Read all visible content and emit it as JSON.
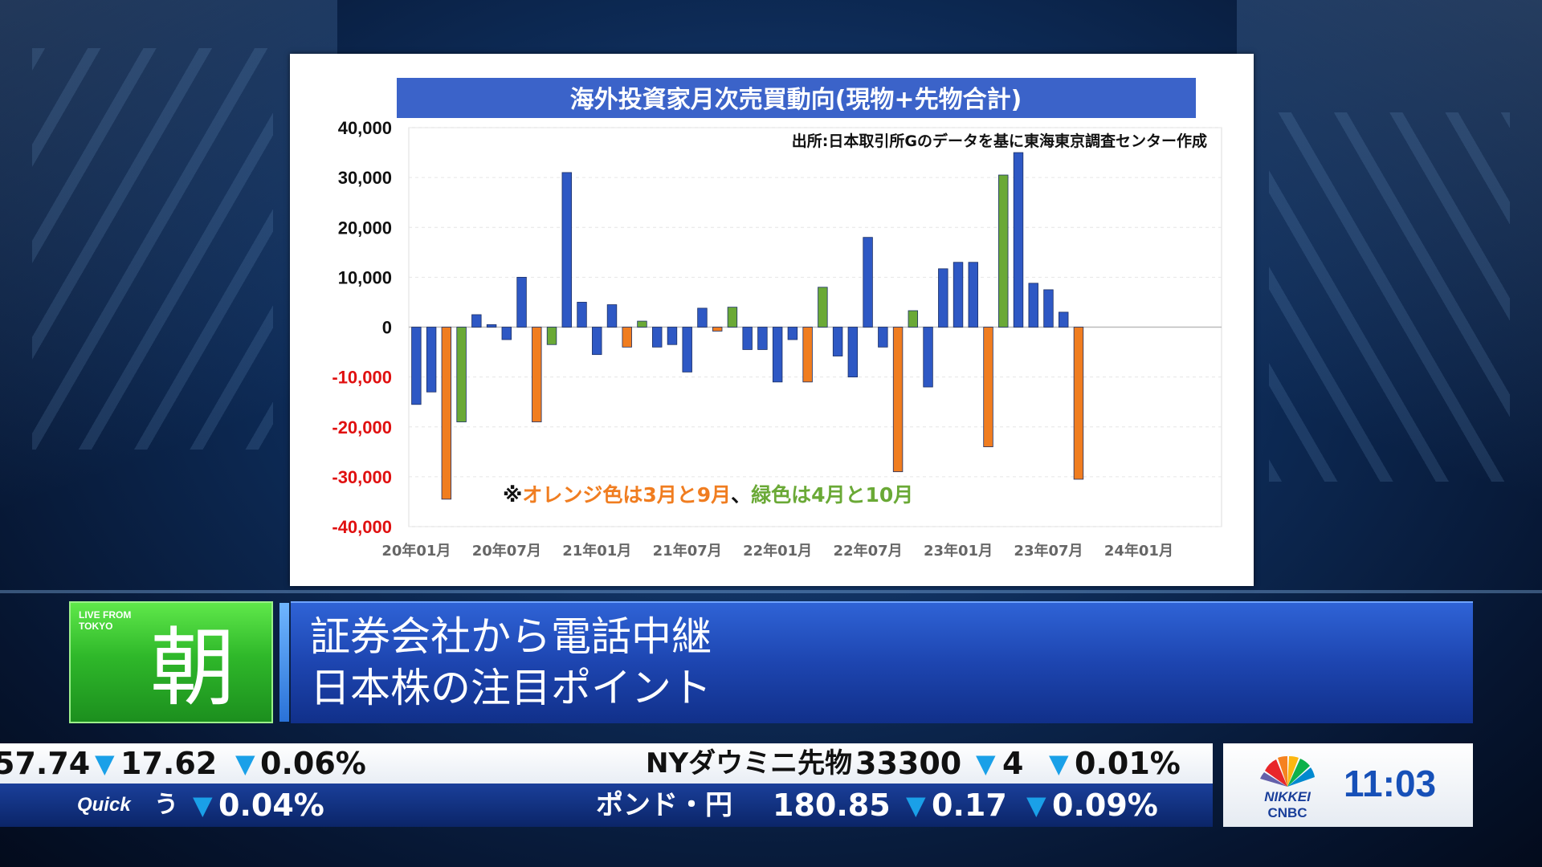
{
  "chart_data": {
    "type": "bar",
    "title": "海外投資家月次売買動向(現物+先物合計)",
    "source_note": "出所:日本取引所Gのデータを基に東海東京調査センター作成",
    "legend_note": {
      "prefix": "※",
      "orange_text": "オレンジ色は3月と9月",
      "separator": "、",
      "green_text": "緑色は4月と10月"
    },
    "x_tick_labels": [
      "20年01月",
      "20年07月",
      "21年01月",
      "21年07月",
      "22年01月",
      "22年07月",
      "23年01月",
      "23年07月",
      "24年01月"
    ],
    "y_tick_labels": [
      "40,000",
      "30,000",
      "20,000",
      "10,000",
      "0",
      "-10,000",
      "-20,000",
      "-30,000",
      "-40,000"
    ],
    "ylim": [
      -40000,
      40000
    ],
    "x_months_span": 54,
    "grid": true,
    "colors": {
      "blue": "#2e58c4",
      "orange": "#f07d20",
      "green": "#6aa936",
      "negative_tick": "#e01010",
      "title_bg": "#3b63c9"
    },
    "values": [
      -15500,
      -13000,
      -34500,
      -19000,
      2500,
      500,
      -2500,
      10000,
      -19000,
      -3500,
      31000,
      5000,
      -5500,
      4500,
      -4000,
      1200,
      -4000,
      -3500,
      -9000,
      3800,
      -800,
      4000,
      -4500,
      -4500,
      -11000,
      -2500,
      -11000,
      8000,
      -5800,
      -10000,
      18000,
      -4000,
      -29000,
      3300,
      -12000,
      11700,
      13000,
      13000,
      -24000,
      30500,
      35000,
      8800,
      7500,
      3000,
      -30500
    ],
    "bar_colors": [
      "blue",
      "blue",
      "orange",
      "green",
      "blue",
      "blue",
      "blue",
      "blue",
      "orange",
      "green",
      "blue",
      "blue",
      "blue",
      "blue",
      "orange",
      "green",
      "blue",
      "blue",
      "blue",
      "blue",
      "orange",
      "green",
      "blue",
      "blue",
      "blue",
      "blue",
      "orange",
      "green",
      "blue",
      "blue",
      "blue",
      "blue",
      "orange",
      "green",
      "blue",
      "blue",
      "blue",
      "blue",
      "orange",
      "green",
      "blue",
      "blue",
      "blue",
      "blue",
      "orange"
    ]
  },
  "lower_third": {
    "live_label": "LIVE FROM TOKYO",
    "program_char": "朝",
    "headline_line1": "証券会社から電話中継",
    "headline_line2": "日本株の注目ポイント"
  },
  "ticker": {
    "top": {
      "item1_value": "57.74",
      "item1_change": "17.62",
      "item1_pct": "0.06%",
      "item2_name": "NYダウミニ先物",
      "item2_value": "33300",
      "item2_change": "4",
      "item2_pct": "0.01%"
    },
    "bottom": {
      "source_logo": "Quick",
      "item1_partial": "う",
      "item1_pct": "0.04%",
      "item2_name": "ポンド・円",
      "item2_value": "180.85",
      "item2_change": "0.17",
      "item2_pct": "0.09%"
    },
    "down_arrow": "▼"
  },
  "clock": {
    "logo_top": "NIKKEI",
    "logo_bottom": "CNBC",
    "time": "11:03"
  }
}
